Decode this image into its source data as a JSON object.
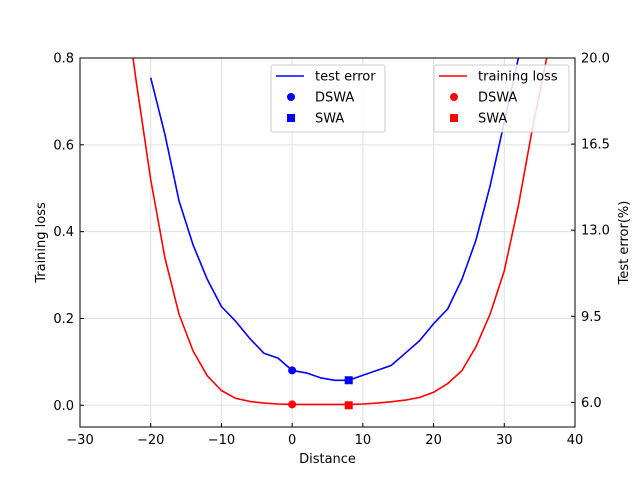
{
  "chart_data": {
    "type": "line",
    "xlabel": "Distance",
    "ylabel_left": "Training loss",
    "ylabel_right": "Test error(%)",
    "xlim": [
      -30,
      40
    ],
    "ylim_left": [
      -0.05,
      0.8
    ],
    "ylim_right": [
      5.0,
      20.0
    ],
    "xticks": [
      "−30",
      "−20",
      "−10",
      "0",
      "10",
      "20",
      "30",
      "40"
    ],
    "xtick_values": [
      -30,
      -20,
      -10,
      0,
      10,
      20,
      30,
      40
    ],
    "yticks_left": [
      "0.0",
      "0.2",
      "0.4",
      "0.6",
      "0.8"
    ],
    "ytick_values_left": [
      0.0,
      0.2,
      0.4,
      0.6,
      0.8
    ],
    "yticks_right": [
      "6.0",
      "9.5",
      "13.0",
      "16.5",
      "20.0"
    ],
    "ytick_values_right": [
      6.0,
      9.5,
      13.0,
      16.5,
      20.0
    ],
    "grid": true,
    "series": [
      {
        "name": "test error",
        "axis": "right",
        "color": "#0000ff",
        "x": [
          -20,
          -18,
          -16,
          -14,
          -12,
          -10,
          -8,
          -6,
          -4,
          -2,
          0,
          2,
          4,
          6,
          8,
          10,
          12,
          14,
          16,
          18,
          20,
          22,
          24,
          26,
          28,
          30,
          32
        ],
        "y": [
          19.2,
          16.9,
          14.2,
          12.4,
          11.0,
          9.9,
          9.3,
          8.6,
          8.0,
          7.8,
          7.3,
          7.2,
          7.0,
          6.9,
          6.9,
          7.1,
          7.3,
          7.5,
          8.0,
          8.5,
          9.2,
          9.8,
          11.0,
          12.6,
          14.8,
          17.4,
          20.0
        ]
      },
      {
        "name": "training loss",
        "axis": "left",
        "color": "#ff0000",
        "x": [
          -22.5,
          -22,
          -20,
          -18,
          -16,
          -14,
          -12,
          -10,
          -8,
          -6,
          -4,
          -2,
          0,
          2,
          4,
          6,
          8,
          10,
          12,
          14,
          16,
          18,
          20,
          22,
          24,
          26,
          28,
          30,
          32,
          34,
          36
        ],
        "y": [
          0.8,
          0.74,
          0.52,
          0.34,
          0.21,
          0.125,
          0.068,
          0.034,
          0.016,
          0.009,
          0.005,
          0.003,
          0.002,
          0.002,
          0.002,
          0.002,
          0.002,
          0.003,
          0.005,
          0.008,
          0.012,
          0.018,
          0.03,
          0.05,
          0.08,
          0.135,
          0.21,
          0.31,
          0.46,
          0.64,
          0.8
        ]
      }
    ],
    "markers": [
      {
        "name": "DSWA",
        "axis": "right",
        "x": 0,
        "y": 7.3,
        "shape": "circle",
        "color": "#0000ff"
      },
      {
        "name": "SWA",
        "axis": "right",
        "x": 8,
        "y": 6.9,
        "shape": "square",
        "color": "#0000ff"
      },
      {
        "name": "DSWA",
        "axis": "left",
        "x": 0,
        "y": 0.002,
        "shape": "circle",
        "color": "#ff0000"
      },
      {
        "name": "SWA",
        "axis": "left",
        "x": 8,
        "y": 0.0,
        "shape": "square",
        "color": "#ff0000"
      }
    ],
    "legends": [
      {
        "placement": "top-center",
        "entries": [
          {
            "label": "test error",
            "type": "line",
            "color": "#0000ff"
          },
          {
            "label": "DSWA",
            "type": "circle",
            "color": "#0000ff"
          },
          {
            "label": "SWA",
            "type": "square",
            "color": "#0000ff"
          }
        ]
      },
      {
        "placement": "top-right",
        "entries": [
          {
            "label": "training loss",
            "type": "line",
            "color": "#ff0000"
          },
          {
            "label": "DSWA",
            "type": "circle",
            "color": "#ff0000"
          },
          {
            "label": "SWA",
            "type": "square",
            "color": "#ff0000"
          }
        ]
      }
    ]
  }
}
